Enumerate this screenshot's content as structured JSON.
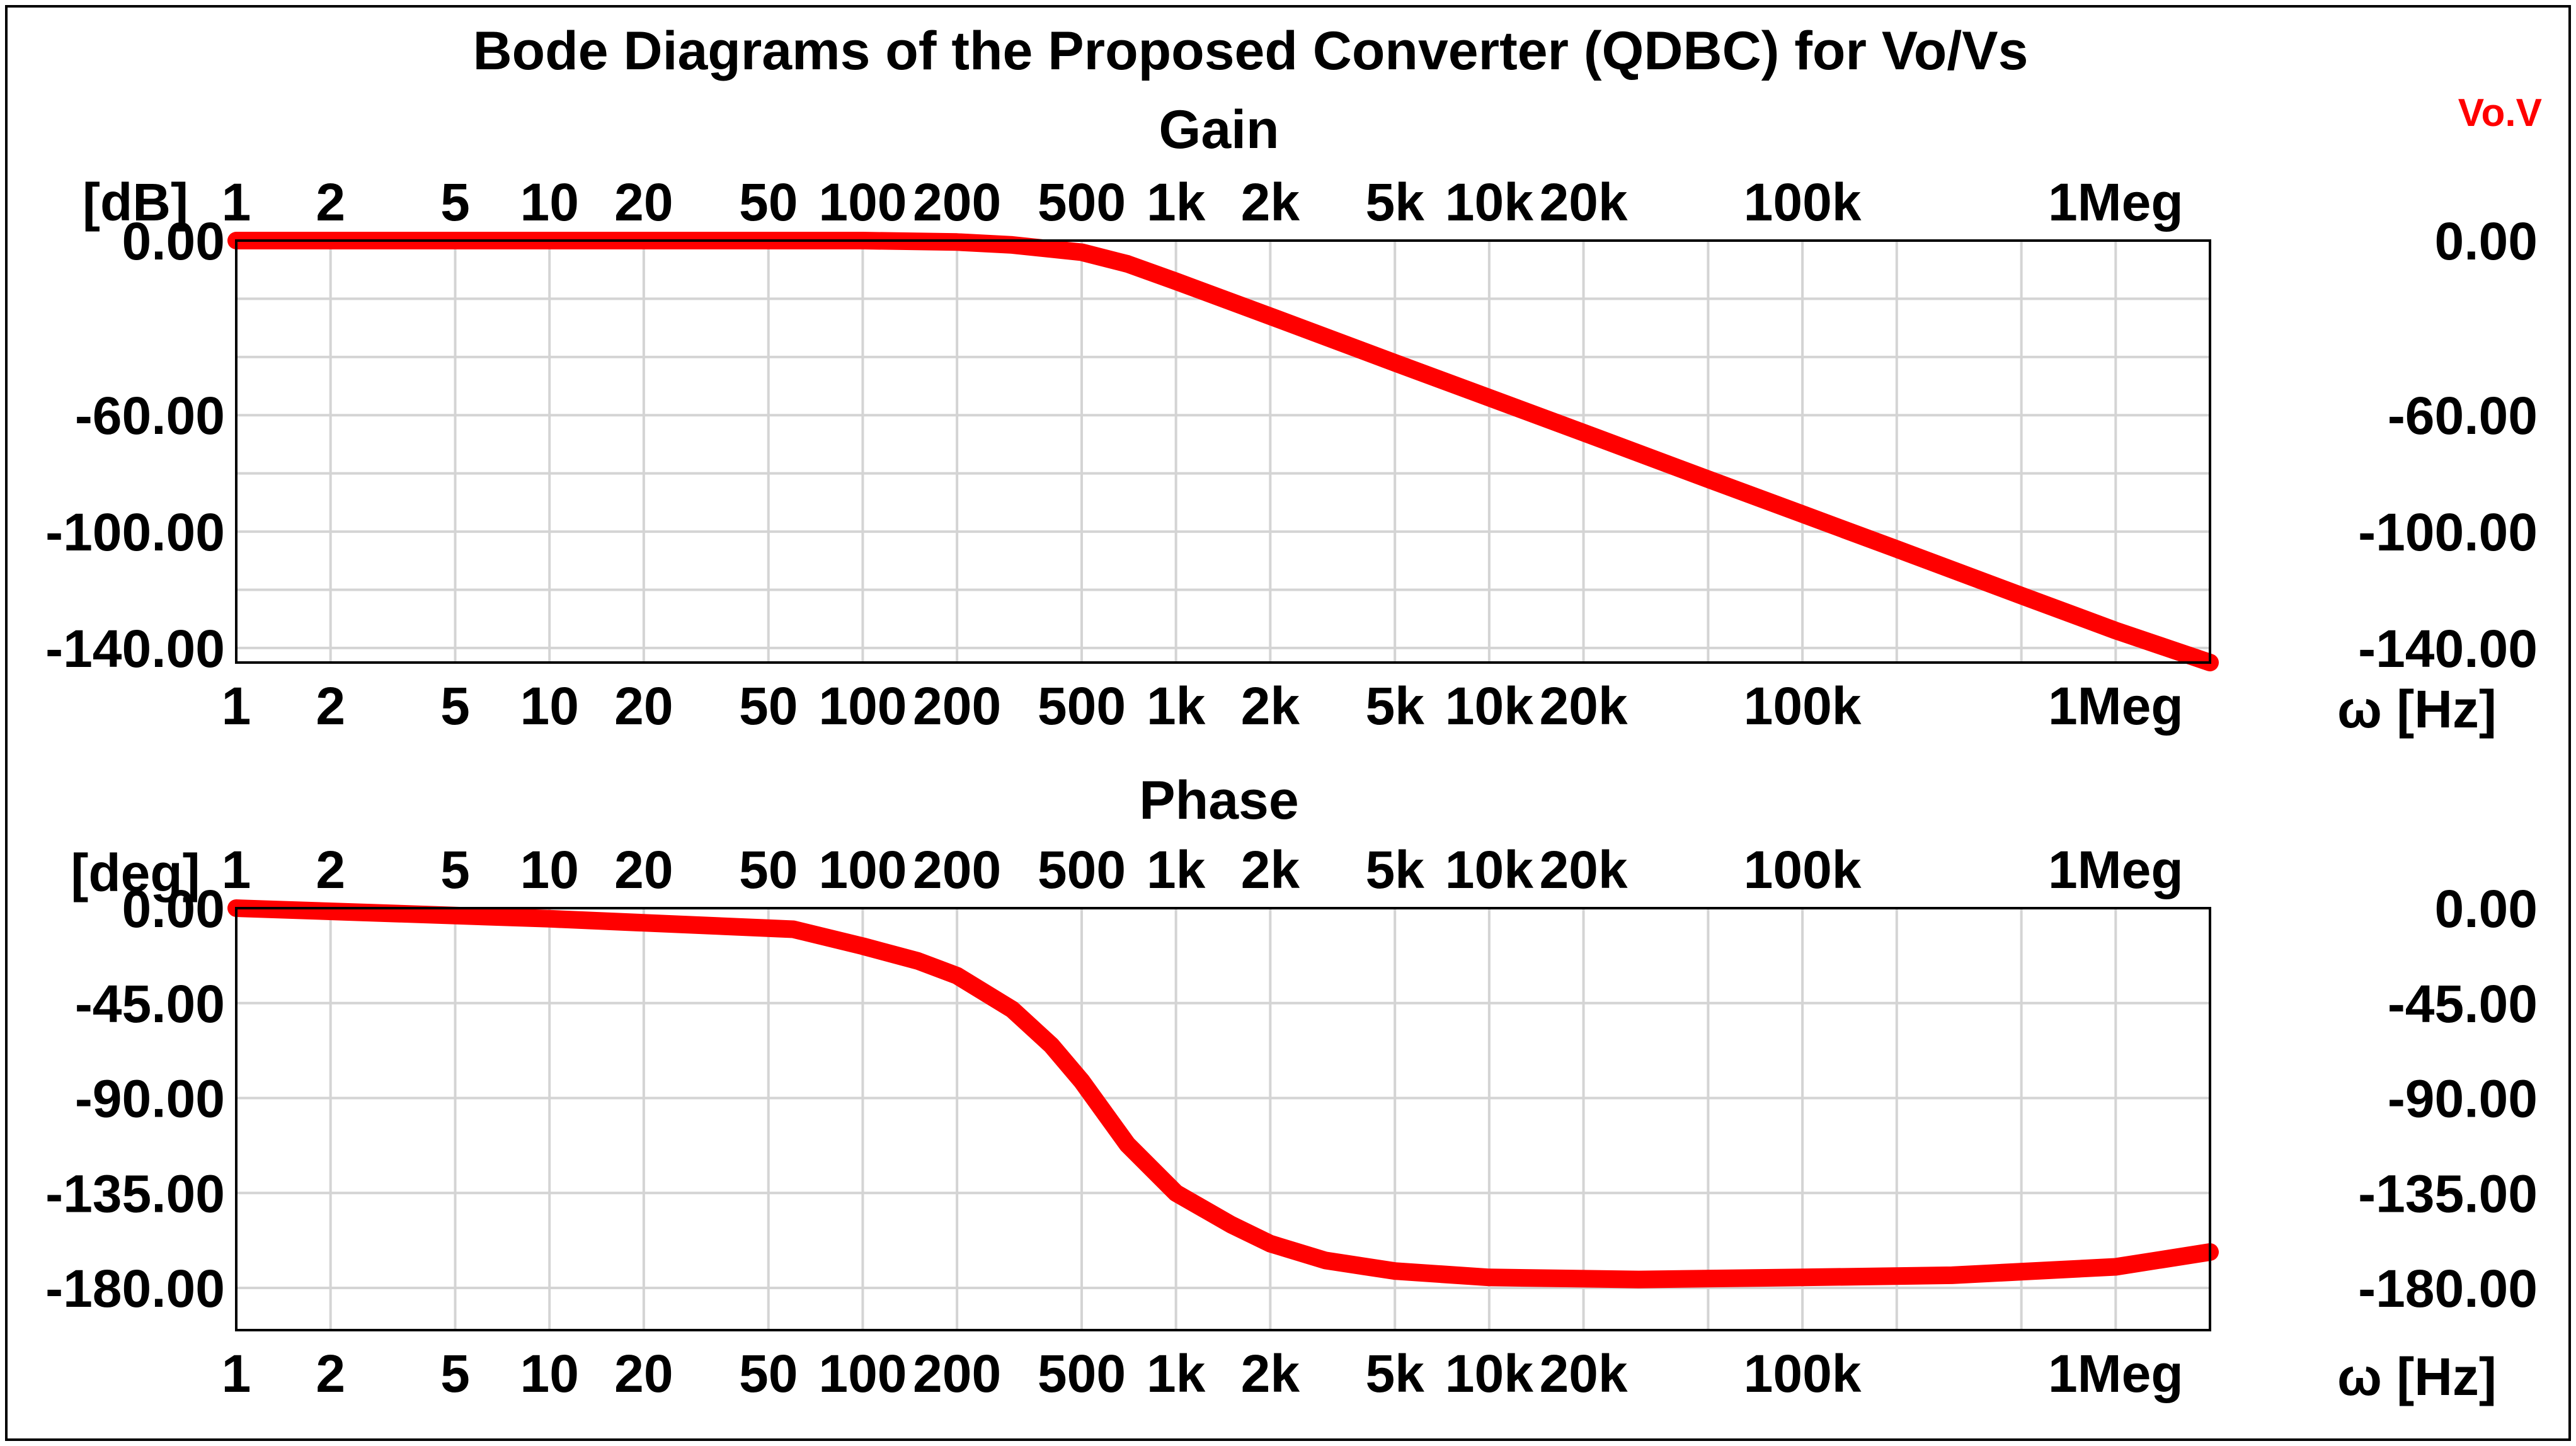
{
  "chart_data": [
    {
      "type": "line",
      "id": "gain",
      "title": "Bode Diagrams of the Proposed Converter (QDBC) for Vo/Vs",
      "subtitle": "Gain",
      "ylabel": "[dB]",
      "xlabel": "ω [Hz]",
      "xscale": "log",
      "xlim": [
        1,
        2000000
      ],
      "ylim": [
        -145,
        0
      ],
      "x_tick_values": [
        1,
        2,
        5,
        10,
        20,
        50,
        100,
        200,
        500,
        1000,
        2000,
        5000,
        10000,
        20000,
        100000,
        1000000
      ],
      "x_tick_labels": [
        "1",
        "2",
        "5",
        "10",
        "20",
        "50",
        "100",
        "200",
        "500",
        "1k",
        "2k",
        "5k",
        "10k",
        "20k",
        "100k",
        "1Meg"
      ],
      "y_tick_values": [
        0,
        -60,
        -100,
        -140
      ],
      "y_tick_labels": [
        "0.00",
        "-60.00",
        "-100.00",
        "-140.00"
      ],
      "y_grid": [
        0,
        -20,
        -40,
        -60,
        -80,
        -100,
        -120,
        -140
      ],
      "series": [
        {
          "name": "Vo.V",
          "color": "#ff0000",
          "x": [
            1,
            10,
            100,
            200,
            300,
            500,
            700,
            1000,
            2000,
            5000,
            10000,
            20000,
            50000,
            100000,
            200000,
            500000,
            1000000,
            2000000
          ],
          "y": [
            0,
            0,
            0,
            -0.5,
            -1.5,
            -4,
            -8,
            -14,
            -26,
            -42,
            -54,
            -66,
            -82,
            -94,
            -106,
            -122,
            -134,
            -145
          ]
        }
      ]
    },
    {
      "type": "line",
      "id": "phase",
      "subtitle": "Phase",
      "ylabel": "[deg]",
      "xlabel": "ω [Hz]",
      "xscale": "log",
      "xlim": [
        1,
        2000000
      ],
      "ylim": [
        -200,
        0
      ],
      "x_tick_values": [
        1,
        2,
        5,
        10,
        20,
        50,
        100,
        200,
        500,
        1000,
        2000,
        5000,
        10000,
        20000,
        100000,
        1000000
      ],
      "x_tick_labels": [
        "1",
        "2",
        "5",
        "10",
        "20",
        "50",
        "100",
        "200",
        "500",
        "1k",
        "2k",
        "5k",
        "10k",
        "20k",
        "100k",
        "1Meg"
      ],
      "y_tick_values": [
        0,
        -45,
        -90,
        -135,
        -180
      ],
      "y_tick_labels": [
        "0.00",
        "-45.00",
        "-90.00",
        "-135.00",
        "-180.00"
      ],
      "y_grid": [
        0,
        -45,
        -90,
        -135,
        -180
      ],
      "series": [
        {
          "name": "Vo.V",
          "color": "#ff0000",
          "x": [
            1,
            10,
            60,
            100,
            150,
            200,
            300,
            400,
            500,
            700,
            1000,
            1500,
            2000,
            3000,
            5000,
            10000,
            30000,
            100000,
            300000,
            1000000,
            2000000
          ],
          "y": [
            0,
            -5,
            -10,
            -18,
            -25,
            -32,
            -48,
            -65,
            -82,
            -112,
            -135,
            -150,
            -159,
            -167,
            -172,
            -175,
            -176,
            -175,
            -174,
            -170,
            -163
          ]
        }
      ]
    }
  ],
  "legend": "Vo.V",
  "colors": {
    "curve": "#ff0000",
    "grid": "#d4d4d4",
    "frame": "#000000"
  }
}
